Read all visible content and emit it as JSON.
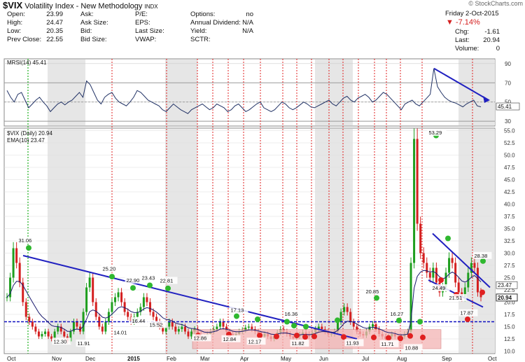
{
  "header": {
    "symbol": "$VIX",
    "name": "Volatility Index - New Methodology",
    "exchange": "INDX",
    "watermark": "© StockCharts.com",
    "date": "Friday  2-Oct-2015",
    "pct_change": "-7.14%",
    "quote_left": [
      {
        "label": "Open:",
        "value": "23.99"
      },
      {
        "label": "High:",
        "value": "24.47"
      },
      {
        "label": "Low:",
        "value": "20.35"
      },
      {
        "label": "Prev Close:",
        "value": "22.55"
      }
    ],
    "quote_mid": [
      {
        "label": "Ask:",
        "value": ""
      },
      {
        "label": "Ask Size:",
        "value": ""
      },
      {
        "label": "Bid:",
        "value": ""
      },
      {
        "label": "Bid Size:",
        "value": ""
      }
    ],
    "quote_mid2": [
      {
        "label": "P/E:",
        "value": ""
      },
      {
        "label": "EPS:",
        "value": ""
      },
      {
        "label": "Last Size:",
        "value": ""
      },
      {
        "label": "VWAP:",
        "value": ""
      }
    ],
    "quote_mid3": [
      {
        "label": "Options:",
        "value": "no"
      },
      {
        "label": "Annual Dividend:",
        "value": "N/A"
      },
      {
        "label": "Yield:",
        "value": "N/A"
      },
      {
        "label": "SCTR:",
        "value": ""
      }
    ],
    "quote_right": [
      {
        "label": "Chg:",
        "value": "-1.61"
      },
      {
        "label": "Last:",
        "value": "20.94"
      },
      {
        "label": "Volume:",
        "value": "0"
      }
    ]
  },
  "colors": {
    "price_up": "#1e9e1e",
    "price_down": "#d42020",
    "trendline": "#2020c0",
    "ema": "#1a1a6e",
    "rsi": "#223366",
    "support": "#1010c0",
    "highlight_band": "#f4b3b3",
    "vline_red": "#e02020",
    "vline_green": "#20b020",
    "shade": "#e6e6e6"
  },
  "chart_data": [
    {
      "type": "line",
      "name": "RSI",
      "legend": "MRSI(14) 45.41",
      "last_value_label": "45.41",
      "ylim": [
        25,
        95
      ],
      "yticks": [
        90,
        70,
        50,
        30
      ],
      "y_tick_labels": [
        "90",
        "70",
        "50",
        "30"
      ],
      "overbought": 70,
      "oversold": 30,
      "values": [
        62,
        55,
        50,
        58,
        60,
        52,
        44,
        48,
        52,
        55,
        50,
        46,
        40,
        44,
        48,
        50,
        47,
        50,
        52,
        56,
        60,
        55,
        72,
        68,
        60,
        52,
        48,
        55,
        58,
        60,
        54,
        50,
        48,
        46,
        50,
        55,
        62,
        60,
        56,
        52,
        50,
        48,
        46,
        42,
        40,
        44,
        48,
        45,
        42,
        40,
        38,
        42,
        44,
        46,
        48,
        45,
        42,
        44,
        48,
        46,
        44,
        40,
        42,
        46,
        48,
        44,
        40,
        42,
        45,
        48,
        50,
        44,
        42,
        40,
        42,
        46,
        50,
        48,
        44,
        42,
        44,
        47,
        50,
        48,
        45,
        44,
        46,
        48,
        50,
        52,
        48,
        46,
        50,
        54,
        56,
        52,
        50,
        54,
        56,
        58,
        55,
        50,
        52,
        56,
        60,
        58,
        54,
        50,
        46,
        42,
        48,
        50,
        52,
        48,
        46,
        50,
        54,
        58,
        85,
        66,
        60,
        55,
        52,
        50,
        49,
        47,
        45,
        48,
        50,
        52,
        46,
        45
      ],
      "annotations": {
        "trend_from": 85,
        "trend_to": 52
      }
    },
    {
      "type": "candlestick",
      "name": "$VIX (Daily) 20.94",
      "ema_label": "EMA(10) 23.47",
      "ylim": [
        9.5,
        55.5
      ],
      "yticks": [
        55,
        52.5,
        50,
        47.5,
        45,
        42.5,
        40,
        37.5,
        35,
        32.5,
        30,
        27.5,
        25,
        22.5,
        20,
        17.5,
        15,
        12.5,
        10
      ],
      "y_tick_labels": [
        "55.0",
        "52.5",
        "50.0",
        "47.5",
        "45.0",
        "42.5",
        "40.0",
        "37.5",
        "35.0",
        "32.5",
        "30.0",
        "27.5",
        "25.0",
        "22.5",
        "20.0",
        "17.5",
        "15.0",
        "12.5",
        "10.0"
      ],
      "x_tick_labels": [
        "Oct",
        "Nov",
        "Dec",
        "2015",
        "Feb",
        "Mar",
        "Apr",
        "May",
        "Jun",
        "Jul",
        "Aug",
        "Sep",
        "Oct"
      ],
      "support_level": 16,
      "last_price": 20.94,
      "ema_last": 23.47,
      "close": [
        21,
        25,
        31,
        28,
        24,
        20,
        17,
        16,
        15,
        14,
        13,
        13.5,
        14,
        13,
        12.5,
        14,
        15,
        14,
        13,
        12,
        14,
        16,
        15,
        14,
        18,
        23,
        25,
        20,
        17,
        15,
        14,
        16,
        18,
        20,
        21,
        22,
        20,
        18,
        17,
        16,
        17,
        18,
        19,
        21,
        20,
        18,
        17,
        16,
        15,
        14,
        15,
        16,
        15,
        14,
        14.5,
        15,
        14,
        13,
        14,
        14.5,
        13.5,
        13,
        12.8,
        13.5,
        14,
        14.5,
        15,
        16,
        15,
        14,
        13.5,
        13,
        13.5,
        14,
        14.3,
        14.8,
        15,
        14.5,
        14,
        13.5,
        13,
        13.5,
        13,
        12.5,
        13,
        13.8,
        14.5,
        14,
        13.5,
        13,
        12.6,
        13,
        13.4,
        13.8,
        13.5,
        13,
        13.8,
        14.5,
        15,
        14.5,
        14,
        13.5,
        13.5,
        14,
        16,
        18,
        19,
        18,
        16,
        15,
        14,
        13.5,
        13.2,
        14,
        15,
        15.5,
        14.5,
        13.5,
        13,
        12.5,
        13,
        13.5,
        13,
        12.5,
        13,
        13.5,
        14,
        28,
        53.3,
        36,
        30,
        28,
        26,
        25,
        27,
        24,
        22,
        23,
        26,
        29,
        28,
        24,
        22,
        21,
        23,
        26,
        28,
        27,
        22,
        21
      ],
      "annotations": [
        {
          "label": "31.06",
          "value": 31.06
        },
        {
          "label": "12.30",
          "value": 12.3
        },
        {
          "label": "11.91",
          "value": 11.91
        },
        {
          "label": "25.20",
          "value": 25.2
        },
        {
          "label": "14.01",
          "value": 14.01
        },
        {
          "label": "22.90",
          "value": 22.9
        },
        {
          "label": "23.43",
          "value": 23.43
        },
        {
          "label": "16.44",
          "value": 16.44
        },
        {
          "label": "22.81",
          "value": 22.81
        },
        {
          "label": "15.52",
          "value": 15.52
        },
        {
          "label": "17.13",
          "value": 17.13
        },
        {
          "label": "16.36",
          "value": 16.36
        },
        {
          "label": "12.84",
          "value": 12.84
        },
        {
          "label": "12.17",
          "value": 12.17
        },
        {
          "label": "11.82",
          "value": 11.82
        },
        {
          "label": "11.93",
          "value": 11.93
        },
        {
          "label": "20.85",
          "value": 20.85
        },
        {
          "label": "16.27",
          "value": 16.27
        },
        {
          "label": "11.71",
          "value": 11.71
        },
        {
          "label": "10.88",
          "value": 10.88
        },
        {
          "label": "53.29",
          "value": 53.29
        },
        {
          "label": "24.49",
          "value": 24.49
        },
        {
          "label": "21.51",
          "value": 21.51
        },
        {
          "label": "28.38",
          "value": 28.38
        },
        {
          "label": "17.87",
          "value": 17.87
        },
        {
          "label": "12.86",
          "value": 12.86
        }
      ]
    }
  ]
}
